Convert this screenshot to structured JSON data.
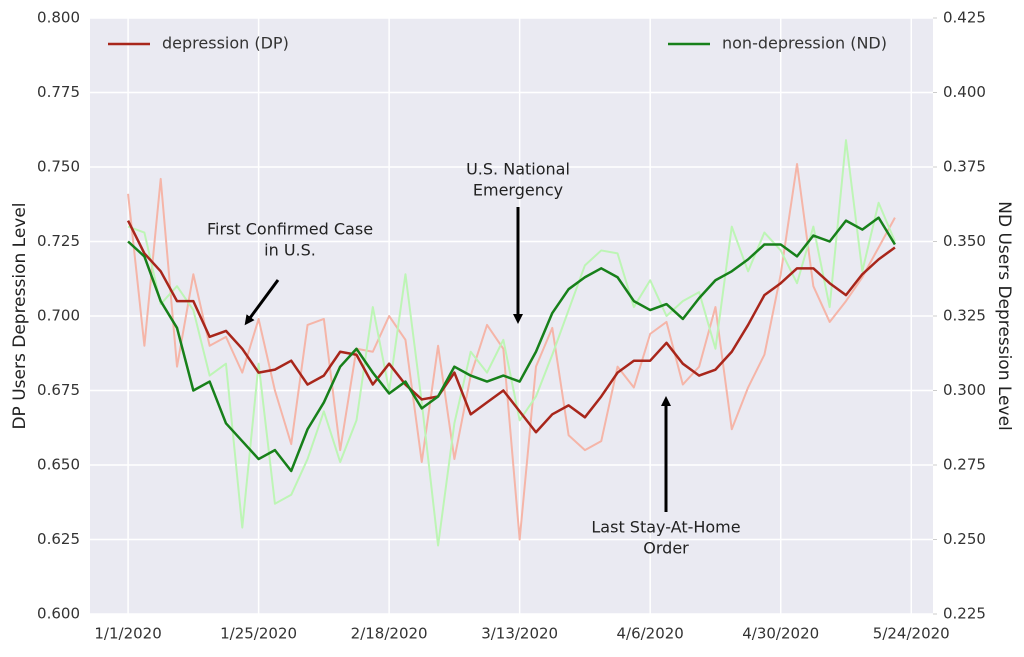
{
  "chart_data": {
    "type": "line",
    "x": [
      "1/1/2020",
      "1/4/2020",
      "1/7/2020",
      "1/10/2020",
      "1/13/2020",
      "1/16/2020",
      "1/19/2020",
      "1/22/2020",
      "1/25/2020",
      "1/28/2020",
      "1/31/2020",
      "2/3/2020",
      "2/6/2020",
      "2/9/2020",
      "2/12/2020",
      "2/15/2020",
      "2/18/2020",
      "2/21/2020",
      "2/24/2020",
      "2/27/2020",
      "3/1/2020",
      "3/4/2020",
      "3/7/2020",
      "3/10/2020",
      "3/13/2020",
      "3/16/2020",
      "3/19/2020",
      "3/22/2020",
      "3/25/2020",
      "3/28/2020",
      "3/31/2020",
      "4/3/2020",
      "4/6/2020",
      "4/9/2020",
      "4/12/2020",
      "4/15/2020",
      "4/18/2020",
      "4/21/2020",
      "4/24/2020",
      "4/27/2020",
      "4/30/2020",
      "5/3/2020",
      "5/6/2020",
      "5/9/2020",
      "5/12/2020",
      "5/15/2020",
      "5/18/2020",
      "5/21/2020"
    ],
    "series": [
      {
        "color": "#f5b5a8",
        "values": [
          0.741,
          0.69,
          0.746,
          0.683,
          0.714,
          0.69,
          0.693,
          0.681,
          0.699,
          0.675,
          0.657,
          0.697,
          0.699,
          0.655,
          0.689,
          0.688,
          0.7,
          0.692,
          0.651,
          0.69,
          0.652,
          0.68,
          0.697,
          0.689,
          0.625,
          0.683,
          0.696,
          0.66,
          0.655,
          0.658,
          0.683,
          0.676,
          0.694,
          0.698,
          0.677,
          0.683,
          0.703,
          0.662,
          0.676,
          0.687,
          0.714,
          0.751,
          0.71,
          0.698,
          0.705,
          0.713,
          0.723,
          0.733
        ]
      },
      {
        "color": "#bdf5b5",
        "axis": "y2",
        "values": [
          0.355,
          0.353,
          0.329,
          0.335,
          0.327,
          0.305,
          0.309,
          0.254,
          0.309,
          0.262,
          0.265,
          0.277,
          0.293,
          0.276,
          0.29,
          0.328,
          0.3,
          0.339,
          0.296,
          0.248,
          0.289,
          0.313,
          0.306,
          0.317,
          0.29,
          0.298,
          0.312,
          0.327,
          0.342,
          0.347,
          0.346,
          0.328,
          0.337,
          0.325,
          0.33,
          0.333,
          0.314,
          0.355,
          0.34,
          0.353,
          0.347,
          0.336,
          0.355,
          0.328,
          0.384,
          0.34,
          0.363,
          0.35
        ]
      },
      {
        "name": "depression (DP)",
        "color": "#a8261b",
        "legend_loc": "upper left",
        "values": [
          0.732,
          0.721,
          0.715,
          0.705,
          0.705,
          0.693,
          0.695,
          0.689,
          0.681,
          0.682,
          0.685,
          0.677,
          0.68,
          0.688,
          0.687,
          0.677,
          0.684,
          0.677,
          0.672,
          0.673,
          0.681,
          0.667,
          0.671,
          0.675,
          0.668,
          0.661,
          0.667,
          0.67,
          0.666,
          0.673,
          0.681,
          0.685,
          0.685,
          0.691,
          0.684,
          0.68,
          0.682,
          0.688,
          0.697,
          0.707,
          0.711,
          0.716,
          0.716,
          0.711,
          0.707,
          0.714,
          0.719,
          0.723
        ]
      },
      {
        "name": "non-depression (ND)",
        "color": "#17801a",
        "axis": "y2",
        "legend_loc": "upper right",
        "values": [
          0.35,
          0.345,
          0.33,
          0.321,
          0.3,
          0.303,
          0.289,
          0.283,
          0.277,
          0.28,
          0.273,
          0.287,
          0.296,
          0.308,
          0.314,
          0.306,
          0.299,
          0.303,
          0.294,
          0.298,
          0.308,
          0.305,
          0.303,
          0.305,
          0.303,
          0.313,
          0.326,
          0.334,
          0.338,
          0.341,
          0.338,
          0.33,
          0.327,
          0.329,
          0.324,
          0.331,
          0.337,
          0.34,
          0.344,
          0.349,
          0.349,
          0.345,
          0.352,
          0.35,
          0.357,
          0.354,
          0.358,
          0.349
        ]
      }
    ],
    "xlim": [
      "12/25/2019",
      "5/28/2020"
    ],
    "xticks": [
      "1/1/2020",
      "1/25/2020",
      "2/18/2020",
      "3/13/2020",
      "4/6/2020",
      "4/30/2020",
      "5/24/2020"
    ],
    "ylim": [
      0.6,
      0.8
    ],
    "yticks": [
      {
        "value": 0.6,
        "label": "0.600"
      },
      {
        "value": 0.625,
        "label": "0.625"
      },
      {
        "value": 0.65,
        "label": "0.650"
      },
      {
        "value": 0.675,
        "label": "0.675"
      },
      {
        "value": 0.7,
        "label": "0.700"
      },
      {
        "value": 0.725,
        "label": "0.725"
      },
      {
        "value": 0.75,
        "label": "0.750"
      },
      {
        "value": 0.775,
        "label": "0.775"
      },
      {
        "value": 0.8,
        "label": "0.800"
      }
    ],
    "y2lim": [
      0.225,
      0.425
    ],
    "y2ticks": [
      {
        "value": 0.225,
        "label": "0.225"
      },
      {
        "value": 0.25,
        "label": "0.250"
      },
      {
        "value": 0.275,
        "label": "0.275"
      },
      {
        "value": 0.3,
        "label": "0.300"
      },
      {
        "value": 0.325,
        "label": "0.325"
      },
      {
        "value": 0.35,
        "label": "0.350"
      },
      {
        "value": 0.375,
        "label": "0.375"
      },
      {
        "value": 0.4,
        "label": "0.400"
      },
      {
        "value": 0.425,
        "label": "0.425"
      }
    ],
    "ylabel": "DP Users Depression Level",
    "y2label": "ND Users Depression Level",
    "grid": true,
    "annotations": [
      {
        "lines": [
          "First Confirmed Case",
          "in U.S."
        ]
      },
      {
        "lines": [
          "U.S. National",
          "Emergency"
        ]
      },
      {
        "lines": [
          "Last Stay-At-Home",
          "Order"
        ]
      }
    ]
  }
}
